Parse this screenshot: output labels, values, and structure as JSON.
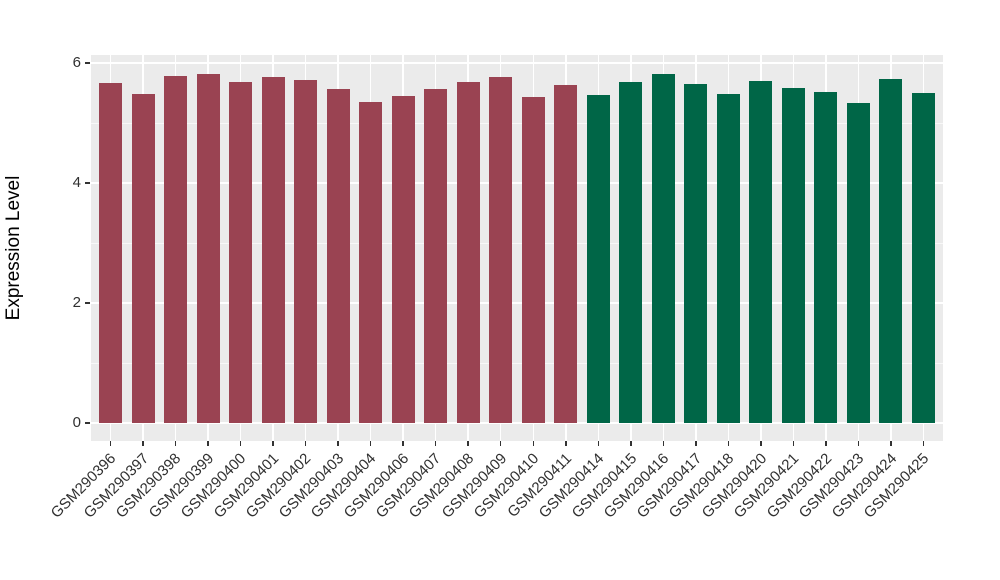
{
  "chart_data": {
    "type": "bar",
    "title": "",
    "xlabel": "",
    "ylabel": "Expression Level",
    "ylim": [
      -0.3,
      6.13
    ],
    "yticks": [
      0,
      2,
      4,
      6
    ],
    "yticks_minor": [
      1,
      3,
      5
    ],
    "grid": "on",
    "legend": "none",
    "panel_bg_color": "#EBEBEB",
    "grid_color": "#FFFFFF",
    "axis_text_color": "#303030",
    "group_colors": {
      "group1": "#9A4352",
      "group2": "#006647"
    },
    "categories": [
      "GSM290396",
      "GSM290397",
      "GSM290398",
      "GSM290399",
      "GSM290400",
      "GSM290401",
      "GSM290402",
      "GSM290403",
      "GSM290404",
      "GSM290406",
      "GSM290407",
      "GSM290408",
      "GSM290409",
      "GSM290410",
      "GSM290411",
      "GSM290414",
      "GSM290415",
      "GSM290416",
      "GSM290417",
      "GSM290418",
      "GSM290420",
      "GSM290421",
      "GSM290422",
      "GSM290423",
      "GSM290424",
      "GSM290425"
    ],
    "series": [
      {
        "name": "Expression Level",
        "values": [
          5.66,
          5.48,
          5.79,
          5.81,
          5.69,
          5.76,
          5.72,
          5.56,
          5.35,
          5.45,
          5.56,
          5.69,
          5.76,
          5.43,
          5.64,
          5.46,
          5.69,
          5.82,
          5.65,
          5.48,
          5.7,
          5.58,
          5.51,
          5.33,
          5.73,
          5.5
        ]
      }
    ],
    "bar_groups": [
      "group1",
      "group1",
      "group1",
      "group1",
      "group1",
      "group1",
      "group1",
      "group1",
      "group1",
      "group1",
      "group1",
      "group1",
      "group1",
      "group1",
      "group1",
      "group2",
      "group2",
      "group2",
      "group2",
      "group2",
      "group2",
      "group2",
      "group2",
      "group2",
      "group2",
      "group2"
    ]
  }
}
